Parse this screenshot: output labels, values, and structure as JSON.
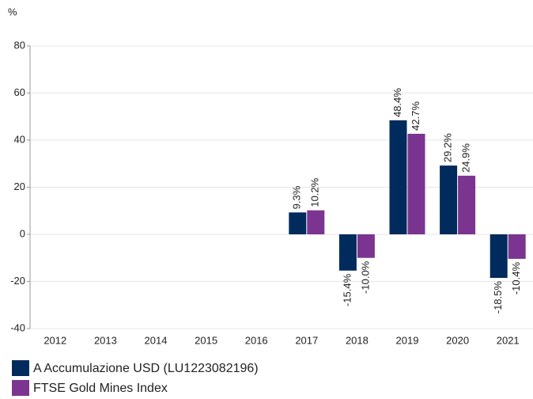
{
  "chart_data": {
    "type": "bar",
    "y_axis_label": "%",
    "categories": [
      "2012",
      "2013",
      "2014",
      "2015",
      "2016",
      "2017",
      "2018",
      "2019",
      "2020",
      "2021"
    ],
    "series": [
      {
        "name": "A Accumulazione USD (LU1223082196)",
        "color": "#002b5c",
        "values": [
          null,
          null,
          null,
          null,
          null,
          9.3,
          -15.4,
          48.4,
          29.2,
          -18.5
        ],
        "value_labels": [
          null,
          null,
          null,
          null,
          null,
          "9.3%",
          "-15.4%",
          "48.4%",
          "29.2%",
          "-18.5%"
        ]
      },
      {
        "name": "FTSE Gold Mines Index",
        "color": "#7b3590",
        "values": [
          null,
          null,
          null,
          null,
          null,
          10.2,
          -10.0,
          42.7,
          24.9,
          -10.4
        ],
        "value_labels": [
          null,
          null,
          null,
          null,
          null,
          "10.2%",
          "-10.0%",
          "42.7%",
          "24.9%",
          "-10.4%"
        ]
      }
    ],
    "ylim": [
      -40,
      80
    ],
    "yticks": [
      -40,
      -20,
      0,
      20,
      40,
      60,
      80
    ],
    "grid": true
  }
}
